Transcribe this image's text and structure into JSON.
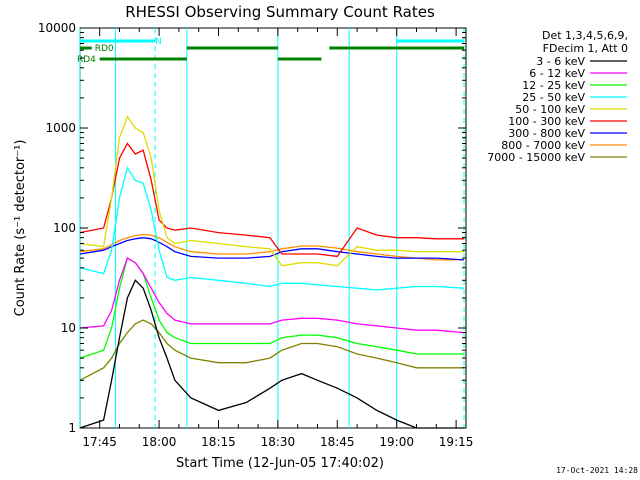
{
  "chart_data": {
    "type": "line",
    "title": "RHESSI Observing Summary Count Rates",
    "xlabel": "Start Time (12-Jun-05 17:40:02)",
    "ylabel": "Count Rate (s⁻¹ detector⁻¹)",
    "y_scale": "log",
    "ylim": [
      1,
      10000
    ],
    "xlim": [
      "17:40:02",
      "19:17:30"
    ],
    "x_ticks": [
      "17:45",
      "18:00",
      "18:15",
      "18:30",
      "18:45",
      "19:00",
      "19:15"
    ],
    "y_ticks": [
      "1",
      "10",
      "100",
      "1000",
      "10000"
    ],
    "legend_header": [
      "Det 1,3,4,5,6,9,",
      "FDecim 1, Att 0"
    ],
    "legend_position": "right",
    "series": [
      {
        "name": "3 - 6 keV",
        "color": "#000000",
        "x": [
          "17:40",
          "17:46",
          "17:48",
          "17:50",
          "17:52",
          "17:54",
          "17:56",
          "17:58",
          "18:00",
          "18:02",
          "18:04",
          "18:08",
          "18:15",
          "18:22",
          "18:28",
          "18:31",
          "18:36",
          "18:40",
          "18:45",
          "18:50",
          "18:55",
          "19:00",
          "19:05",
          "19:10",
          "19:17"
        ],
        "y": [
          1,
          1.2,
          3,
          8,
          20,
          30,
          25,
          15,
          8,
          5,
          3,
          2,
          1.5,
          1.8,
          2.5,
          3,
          3.5,
          3,
          2.5,
          2,
          1.5,
          1.2,
          1,
          1,
          1
        ]
      },
      {
        "name": "6 - 12 keV",
        "color": "#ff00ff",
        "x": [
          "17:40",
          "17:46",
          "17:48",
          "17:50",
          "17:52",
          "17:54",
          "17:56",
          "17:58",
          "18:00",
          "18:02",
          "18:04",
          "18:08",
          "18:15",
          "18:22",
          "18:28",
          "18:31",
          "18:36",
          "18:40",
          "18:45",
          "18:50",
          "18:55",
          "19:00",
          "19:05",
          "19:10",
          "19:17"
        ],
        "y": [
          10,
          10.5,
          15,
          30,
          50,
          45,
          35,
          25,
          18,
          14,
          12,
          11,
          11,
          11,
          11,
          12,
          12.5,
          12.5,
          12,
          11,
          10.5,
          10,
          9.5,
          9.5,
          9
        ]
      },
      {
        "name": "12 - 25 keV",
        "color": "#00ff00",
        "x": [
          "17:40",
          "17:46",
          "17:48",
          "17:50",
          "17:52",
          "17:54",
          "17:56",
          "17:58",
          "18:00",
          "18:02",
          "18:04",
          "18:08",
          "18:15",
          "18:22",
          "18:28",
          "18:31",
          "18:36",
          "18:40",
          "18:45",
          "18:50",
          "18:55",
          "19:00",
          "19:05",
          "19:10",
          "19:17"
        ],
        "y": [
          5,
          6,
          10,
          25,
          50,
          45,
          35,
          20,
          12,
          9,
          8,
          7,
          7,
          7,
          7,
          8,
          8.5,
          8.5,
          8,
          7,
          6.5,
          6,
          5.5,
          5.5,
          5.5
        ]
      },
      {
        "name": "25 - 50 keV",
        "color": "#00ffff",
        "x": [
          "17:40",
          "17:46",
          "17:48",
          "17:50",
          "17:52",
          "17:54",
          "17:56",
          "17:58",
          "18:00",
          "18:02",
          "18:04",
          "18:08",
          "18:15",
          "18:22",
          "18:28",
          "18:31",
          "18:36",
          "18:40",
          "18:45",
          "18:50",
          "18:55",
          "19:00",
          "19:05",
          "19:10",
          "19:17"
        ],
        "y": [
          40,
          35,
          60,
          200,
          400,
          300,
          280,
          150,
          60,
          32,
          30,
          32,
          30,
          28,
          26,
          28,
          28,
          27,
          26,
          25,
          24,
          25,
          26,
          26,
          25
        ]
      },
      {
        "name": "50 - 100 keV",
        "color": "#dddd00",
        "x": [
          "17:40",
          "17:46",
          "17:48",
          "17:50",
          "17:52",
          "17:54",
          "17:56",
          "17:58",
          "18:00",
          "18:02",
          "18:04",
          "18:08",
          "18:15",
          "18:22",
          "18:28",
          "18:31",
          "18:36",
          "18:40",
          "18:45",
          "18:50",
          "18:55",
          "19:00",
          "19:05",
          "19:10",
          "19:17"
        ],
        "y": [
          70,
          65,
          200,
          800,
          1300,
          1000,
          900,
          500,
          150,
          80,
          70,
          75,
          70,
          65,
          62,
          42,
          45,
          45,
          42,
          65,
          60,
          60,
          58,
          58,
          58
        ]
      },
      {
        "name": "100 - 300 keV",
        "color": "#ff0000",
        "x": [
          "17:40",
          "17:46",
          "17:48",
          "17:50",
          "17:52",
          "17:54",
          "17:56",
          "17:58",
          "18:00",
          "18:02",
          "18:04",
          "18:08",
          "18:15",
          "18:22",
          "18:28",
          "18:31",
          "18:36",
          "18:40",
          "18:45",
          "18:50",
          "18:55",
          "19:00",
          "19:05",
          "19:10",
          "19:17"
        ],
        "y": [
          90,
          100,
          200,
          500,
          700,
          550,
          600,
          300,
          120,
          100,
          95,
          100,
          90,
          85,
          80,
          55,
          55,
          55,
          52,
          100,
          85,
          80,
          80,
          78,
          78
        ]
      },
      {
        "name": "300 - 800 keV",
        "color": "#0000ff",
        "x": [
          "17:40",
          "17:46",
          "17:48",
          "17:50",
          "17:52",
          "17:54",
          "17:56",
          "17:58",
          "18:00",
          "18:02",
          "18:04",
          "18:08",
          "18:15",
          "18:22",
          "18:28",
          "18:31",
          "18:36",
          "18:40",
          "18:45",
          "18:50",
          "18:55",
          "19:00",
          "19:05",
          "19:10",
          "19:17"
        ],
        "y": [
          55,
          60,
          65,
          70,
          75,
          78,
          80,
          78,
          72,
          65,
          58,
          52,
          50,
          50,
          52,
          58,
          62,
          62,
          58,
          55,
          52,
          50,
          50,
          50,
          48
        ]
      },
      {
        "name": "800 - 7000 keV",
        "color": "#ff8c00",
        "x": [
          "17:40",
          "17:46",
          "17:48",
          "17:50",
          "17:52",
          "17:54",
          "17:56",
          "17:58",
          "18:00",
          "18:02",
          "18:04",
          "18:08",
          "18:15",
          "18:22",
          "18:28",
          "18:31",
          "18:36",
          "18:40",
          "18:45",
          "18:50",
          "18:55",
          "19:00",
          "19:05",
          "19:10",
          "19:17"
        ],
        "y": [
          58,
          62,
          68,
          75,
          80,
          84,
          86,
          85,
          80,
          72,
          65,
          58,
          55,
          55,
          58,
          62,
          66,
          66,
          63,
          58,
          55,
          52,
          50,
          48,
          48
        ]
      },
      {
        "name": "7000 - 15000 keV",
        "color": "#808000",
        "x": [
          "17:40",
          "17:46",
          "17:48",
          "17:50",
          "17:52",
          "17:54",
          "17:56",
          "17:58",
          "18:00",
          "18:02",
          "18:04",
          "18:08",
          "18:15",
          "18:22",
          "18:28",
          "18:31",
          "18:36",
          "18:40",
          "18:45",
          "18:50",
          "18:55",
          "19:00",
          "19:05",
          "19:10",
          "19:17"
        ],
        "y": [
          3,
          4,
          5,
          7,
          9,
          11,
          12,
          11,
          9,
          7,
          6,
          5,
          4.5,
          4.5,
          5,
          6,
          7,
          7,
          6.5,
          5.5,
          5,
          4.5,
          4,
          4,
          4
        ]
      }
    ],
    "state_bars": [
      {
        "label": "N",
        "color": "#00ffff",
        "segments": [
          [
            "17:40",
            "17:59"
          ],
          [
            "19:00",
            "19:17"
          ]
        ]
      },
      {
        "label": "RD0",
        "color": "#008000",
        "segments": [
          [
            "17:40",
            "17:43"
          ],
          [
            "18:07",
            "18:30"
          ],
          [
            "18:43",
            "19:17"
          ]
        ]
      },
      {
        "label": "RD4",
        "color": "#008000",
        "segments": [
          [
            "17:45",
            "18:07"
          ],
          [
            "18:30",
            "18:41"
          ]
        ]
      }
    ],
    "vertical_markers": {
      "solid_cyan": [
        "17:40",
        "17:49",
        "18:07",
        "18:30",
        "18:48",
        "19:00"
      ],
      "dashed_cyan": [
        "17:59",
        "19:17"
      ]
    }
  },
  "timestamp": "17-Oct-2021 14:28"
}
